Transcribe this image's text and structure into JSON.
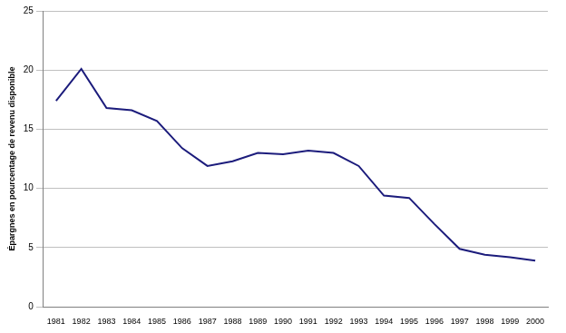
{
  "chart_data": {
    "type": "line",
    "y_label": "Épargnes en pourcentage de revenu disponible",
    "categories": [
      "1981",
      "1982",
      "1983",
      "1984",
      "1985",
      "1986",
      "1987",
      "1988",
      "1989",
      "1990",
      "1991",
      "1992",
      "1993",
      "1994",
      "1995",
      "1996",
      "1997",
      "1998",
      "1999",
      "2000"
    ],
    "values": [
      17.4,
      20.1,
      16.8,
      16.6,
      15.7,
      13.4,
      11.9,
      12.3,
      13.0,
      12.9,
      13.2,
      13.0,
      11.9,
      9.4,
      9.2,
      7.0,
      4.9,
      4.4,
      4.2,
      3.9
    ],
    "color": "#1c1c7c",
    "marker": "none",
    "ylim": [
      0,
      25
    ],
    "yticks": [
      0,
      5,
      10,
      15,
      20,
      25
    ],
    "grid": true
  }
}
